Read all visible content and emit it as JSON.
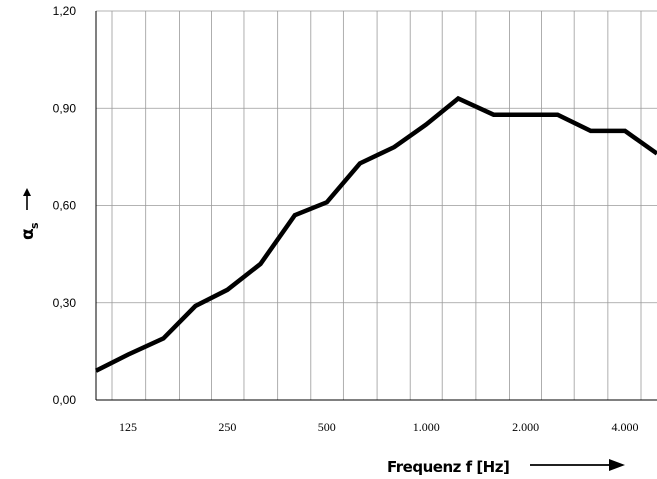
{
  "chart_data": {
    "type": "line",
    "title": "",
    "xlabel": "Frequenz f [Hz]",
    "ylabel": {
      "symbol": "α",
      "subscript": "s"
    },
    "x_scale": "log (third-octave bands)",
    "ylim": [
      0,
      1.2
    ],
    "y_ticks": [
      "0,00",
      "0,30",
      "0,60",
      "0,90",
      "1,20"
    ],
    "y_tick_values": [
      0,
      0.3,
      0.6,
      0.9,
      1.2
    ],
    "x_tick_labels": [
      "125",
      "250",
      "500",
      "1.000",
      "2.000",
      "4.000"
    ],
    "x_tick_values": [
      125,
      250,
      500,
      1000,
      2000,
      4000
    ],
    "x": [
      100,
      125,
      160,
      200,
      250,
      315,
      400,
      500,
      630,
      800,
      1000,
      1250,
      1600,
      2000,
      2500,
      3150,
      4000,
      5000
    ],
    "series": [
      {
        "values": [
          0.09,
          0.14,
          0.19,
          0.29,
          0.34,
          0.42,
          0.57,
          0.61,
          0.73,
          0.78,
          0.85,
          0.93,
          0.88,
          0.88,
          0.88,
          0.83,
          0.83,
          0.76
        ],
        "color": "#000000"
      }
    ],
    "grid": true,
    "legend": "none"
  }
}
